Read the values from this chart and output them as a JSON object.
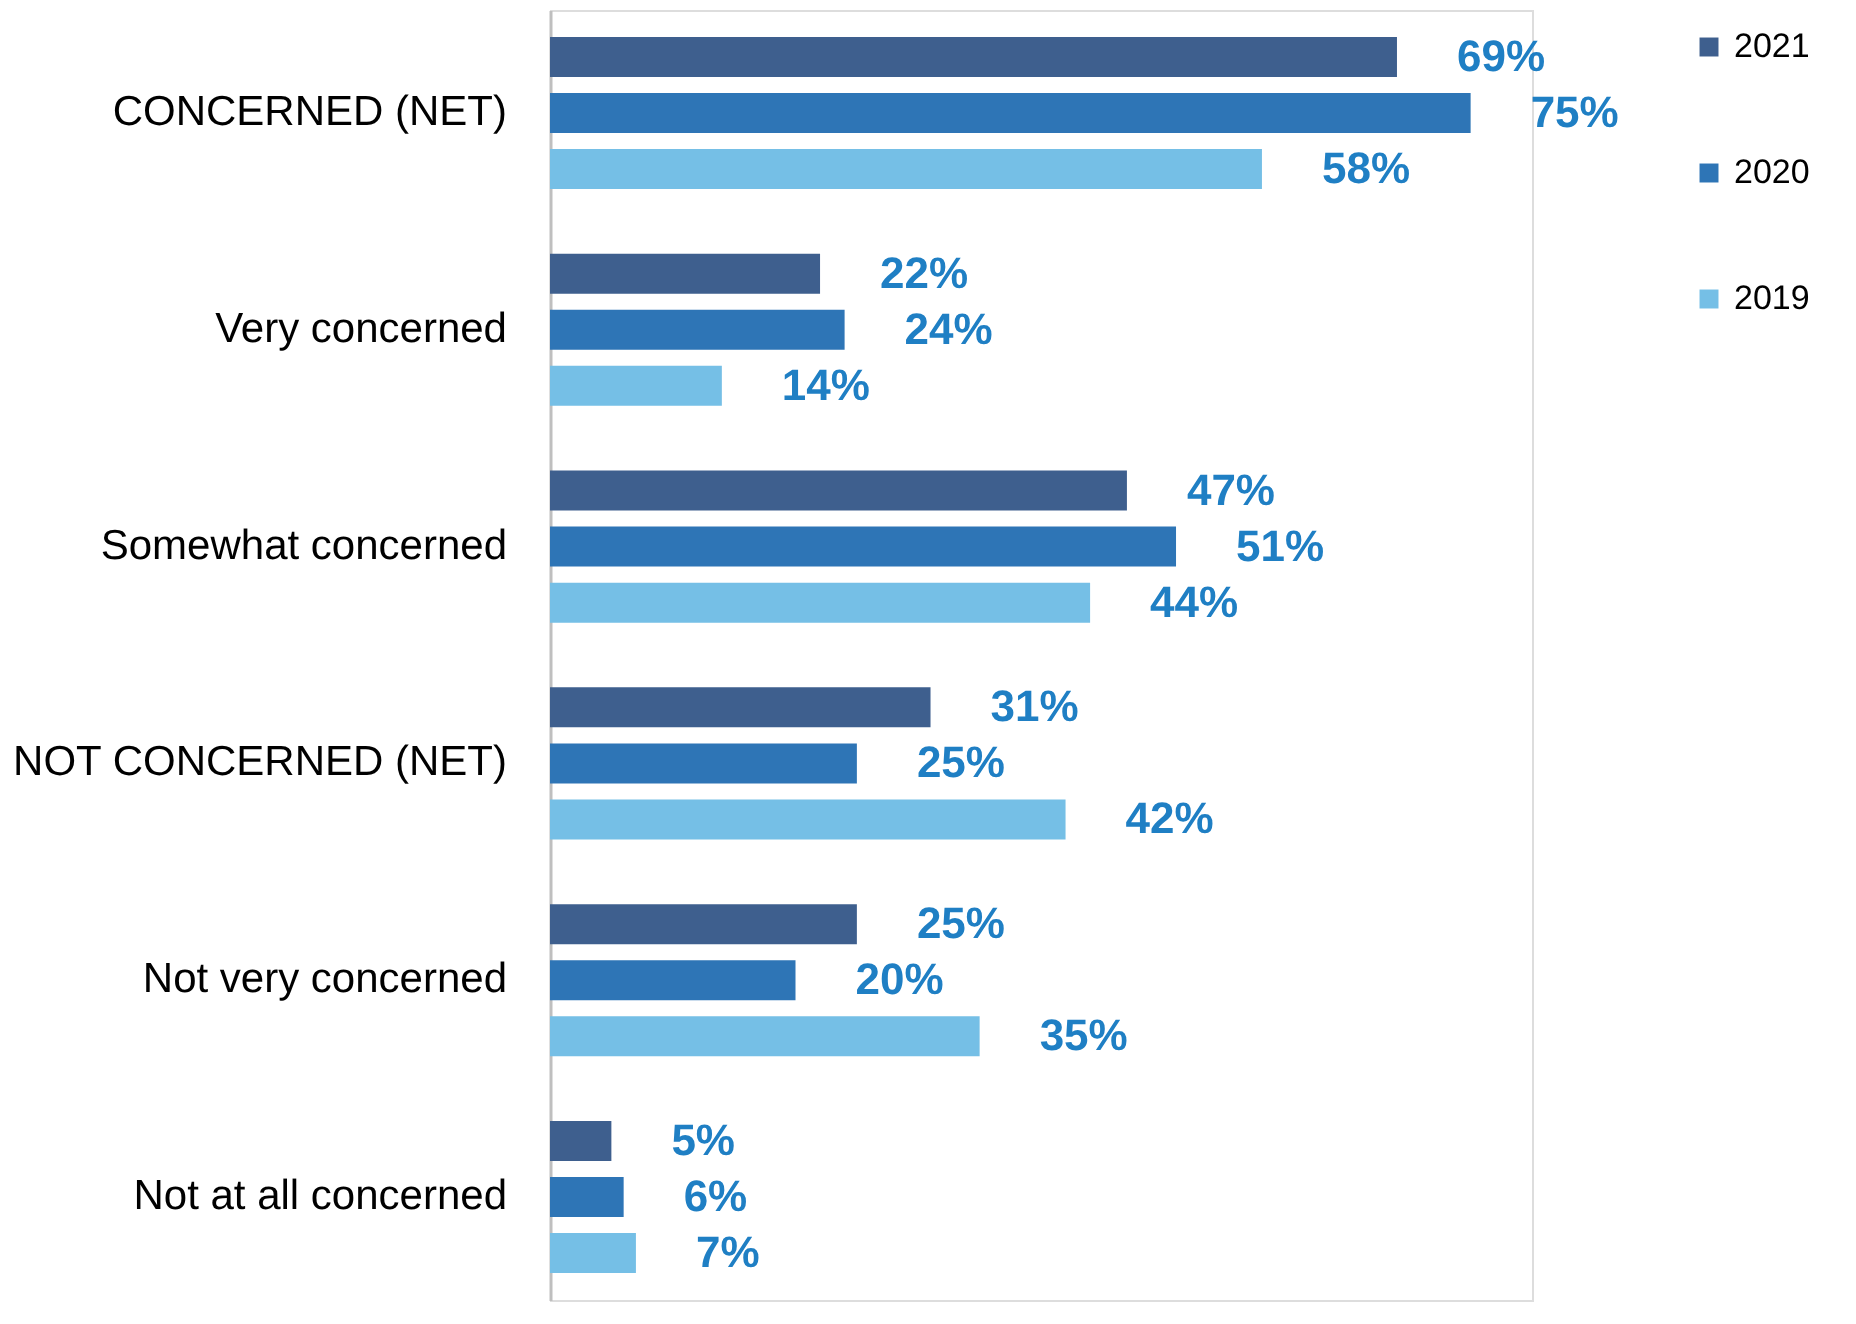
{
  "chart_data": {
    "type": "bar",
    "orientation": "horizontal",
    "categories": [
      "CONCERNED (NET)",
      "Very concerned",
      "Somewhat concerned",
      "NOT CONCERNED (NET)",
      "Not very concerned",
      "Not at all concerned"
    ],
    "series": [
      {
        "name": "2021",
        "color": "#3e5f8e",
        "values": [
          69,
          22,
          47,
          31,
          25,
          5
        ],
        "value_labels": [
          "69%",
          "22%",
          "47%",
          "31%",
          "25%",
          "5%"
        ]
      },
      {
        "name": "2020",
        "color": "#2e75b6",
        "values": [
          75,
          24,
          51,
          25,
          20,
          6
        ],
        "value_labels": [
          "75%",
          "24%",
          "51%",
          "25%",
          "20%",
          "6%"
        ]
      },
      {
        "name": "2019",
        "color": "#75bfe6",
        "values": [
          58,
          14,
          44,
          42,
          35,
          7
        ],
        "value_labels": [
          "58%",
          "14%",
          "44%",
          "42%",
          "35%",
          "7%"
        ]
      }
    ],
    "legend": "right",
    "grid": false
  }
}
